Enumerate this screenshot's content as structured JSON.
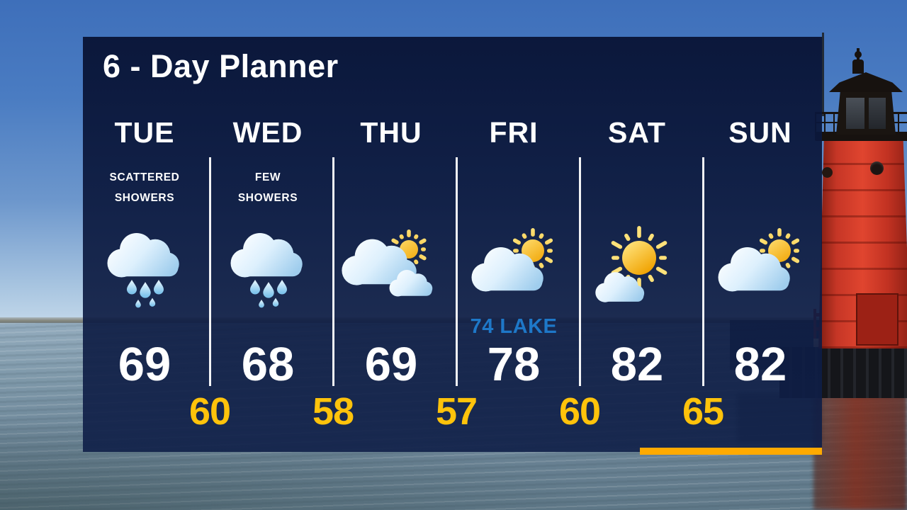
{
  "title": "6 - Day Planner",
  "days": [
    {
      "label": "TUE",
      "condition_line1": "SCATTERED",
      "condition_line2": "SHOWERS",
      "icon": "scattered-showers",
      "high": "69"
    },
    {
      "label": "WED",
      "condition_line1": "FEW",
      "condition_line2": "SHOWERS",
      "icon": "few-showers",
      "high": "68"
    },
    {
      "label": "THU",
      "condition_line1": "",
      "condition_line2": "",
      "icon": "mostly-cloudy",
      "high": "69"
    },
    {
      "label": "FRI",
      "condition_line1": "",
      "condition_line2": "",
      "icon": "partly-sunny",
      "high": "78",
      "annotation": "74 LAKE"
    },
    {
      "label": "SAT",
      "condition_line1": "",
      "condition_line2": "",
      "icon": "mostly-sunny",
      "high": "82"
    },
    {
      "label": "SUN",
      "condition_line1": "",
      "condition_line2": "",
      "icon": "partly-sunny",
      "high": "82"
    }
  ],
  "lows": [
    "60",
    "58",
    "57",
    "60",
    "65"
  ],
  "colors": {
    "panel_navy": "#0C1A40",
    "high_temp": "#FFFFFF",
    "low_temp": "#FFC30B",
    "lake_annotation": "#1E78C8",
    "accent_bar": "#FFAA00",
    "lighthouse_red": "#C63626"
  }
}
